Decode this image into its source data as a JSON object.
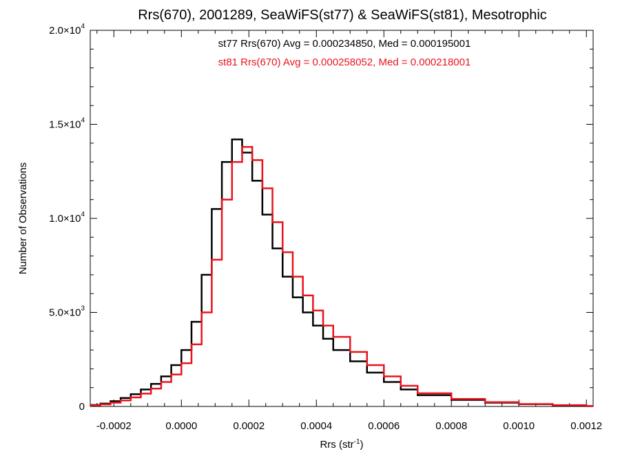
{
  "chart_data": {
    "type": "histogram",
    "title": "Rrs(670), 2001289, SeaWiFS(st77) & SeaWiFS(st81), Mesotrophic",
    "xlabel_base": "Rrs (str",
    "xlabel_sup": "-1",
    "xlabel_close": ")",
    "ylabel": "Number of Observations",
    "xlim": [
      -0.00027,
      0.00122
    ],
    "ylim": [
      0,
      20000
    ],
    "x_ticks": [
      {
        "value": -0.0002,
        "label": "-0.0002"
      },
      {
        "value": 0.0,
        "label": "0.0000"
      },
      {
        "value": 0.0002,
        "label": "0.0002"
      },
      {
        "value": 0.0004,
        "label": "0.0004"
      },
      {
        "value": 0.0006,
        "label": "0.0006"
      },
      {
        "value": 0.0008,
        "label": "0.0008"
      },
      {
        "value": 0.001,
        "label": "0.0010"
      },
      {
        "value": 0.0012,
        "label": "0.0012"
      }
    ],
    "y_ticks": [
      {
        "value": 0,
        "mant": "0",
        "exp": ""
      },
      {
        "value": 5000,
        "mant": "5.0×10",
        "exp": "3"
      },
      {
        "value": 10000,
        "mant": "1.0×10",
        "exp": "4"
      },
      {
        "value": 15000,
        "mant": "1.5×10",
        "exp": "4"
      },
      {
        "value": 20000,
        "mant": "2.0×10",
        "exp": "4"
      }
    ],
    "annotations": [
      {
        "text": "st77 Rrs(670) Avg = 0.000234850, Med = 0.000195001",
        "color": "#000000"
      },
      {
        "text": "st81 Rrs(670) Avg = 0.000258052, Med = 0.000218001",
        "color": "#e8141c"
      }
    ],
    "series": [
      {
        "name": "st77",
        "color": "#000000",
        "x": [
          -0.00027,
          -0.00024,
          -0.00021,
          -0.00018,
          -0.00015,
          -0.00012,
          -9e-05,
          -6e-05,
          -3e-05,
          0.0,
          3e-05,
          6e-05,
          9e-05,
          0.00012,
          0.00015,
          0.00018,
          0.00021,
          0.00024,
          0.00027,
          0.0003,
          0.00033,
          0.00036,
          0.00039,
          0.00042,
          0.00045,
          0.0005,
          0.00055,
          0.0006,
          0.00065,
          0.0007,
          0.0008,
          0.0009,
          0.001,
          0.0011,
          0.0012
        ],
        "y": [
          80,
          150,
          280,
          450,
          650,
          900,
          1200,
          1600,
          2200,
          3000,
          4500,
          7000,
          10500,
          13000,
          14200,
          13500,
          12000,
          10200,
          8400,
          6900,
          5800,
          5000,
          4300,
          3600,
          3000,
          2400,
          1800,
          1300,
          900,
          600,
          350,
          200,
          120,
          60,
          20
        ]
      },
      {
        "name": "st81",
        "color": "#e8141c",
        "x": [
          -0.00027,
          -0.00024,
          -0.00021,
          -0.00018,
          -0.00015,
          -0.00012,
          -9e-05,
          -6e-05,
          -3e-05,
          0.0,
          3e-05,
          6e-05,
          9e-05,
          0.00012,
          0.00015,
          0.00018,
          0.00021,
          0.00024,
          0.00027,
          0.0003,
          0.00033,
          0.00036,
          0.00039,
          0.00042,
          0.00045,
          0.0005,
          0.00055,
          0.0006,
          0.00065,
          0.0007,
          0.0008,
          0.0009,
          0.001,
          0.0011,
          0.0012
        ],
        "y": [
          60,
          110,
          200,
          320,
          480,
          680,
          950,
          1300,
          1700,
          2300,
          3300,
          5000,
          7800,
          11000,
          13000,
          13800,
          13100,
          11600,
          9800,
          8200,
          6900,
          5900,
          5100,
          4300,
          3700,
          2900,
          2200,
          1600,
          1100,
          700,
          400,
          230,
          130,
          70,
          25
        ]
      }
    ]
  }
}
